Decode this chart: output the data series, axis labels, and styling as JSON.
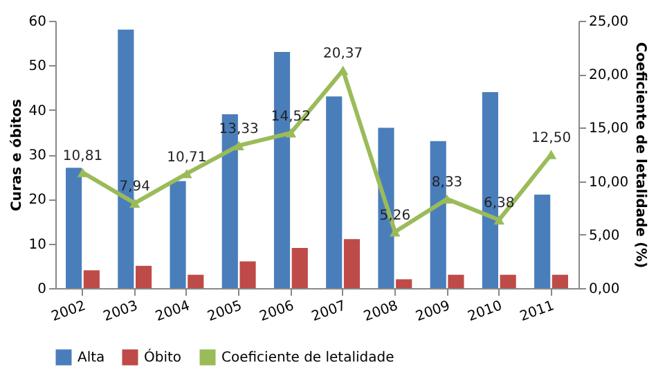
{
  "chart_data": {
    "type": "bar",
    "categories": [
      "2002",
      "2003",
      "2004",
      "2005",
      "2006",
      "2007",
      "2008",
      "2009",
      "2010",
      "2011"
    ],
    "ylabel": "Curas e óbitos",
    "y2label": "Coeficiente de letalidade  (%)",
    "ylim": [
      0,
      60
    ],
    "yticks": [
      0,
      10,
      20,
      30,
      40,
      50,
      60
    ],
    "y2lim": [
      0,
      25
    ],
    "y2ticks": [
      {
        "value": 0,
        "label": "0,00"
      },
      {
        "value": 5,
        "label": "5,00"
      },
      {
        "value": 10,
        "label": "10,00"
      },
      {
        "value": 15,
        "label": "15,00"
      },
      {
        "value": 20,
        "label": "20,00"
      },
      {
        "value": 25,
        "label": "25,00"
      }
    ],
    "grid": false,
    "legend": "bottom",
    "series": [
      {
        "name": "Alta",
        "color": "#4a7ebb",
        "values": [
          27,
          58,
          24,
          39,
          53,
          43,
          36,
          33,
          44,
          21
        ]
      },
      {
        "name": "Óbito",
        "color": "#be4b48",
        "values": [
          4,
          5,
          3,
          6,
          9,
          11,
          2,
          3,
          3,
          3
        ]
      },
      {
        "name": "Coeficiente de letalidade",
        "color": "#9bbb59",
        "type": "line",
        "axis": "y2",
        "marker": "triangle",
        "values": [
          10.81,
          7.94,
          10.71,
          13.33,
          14.52,
          20.37,
          5.26,
          8.33,
          6.38,
          12.5
        ],
        "value_labels": [
          "10,81",
          "7,94",
          "10,71",
          "13,33",
          "14,52",
          "20,37",
          "5,26",
          "8,33",
          "6,38",
          "12,50"
        ]
      }
    ]
  }
}
